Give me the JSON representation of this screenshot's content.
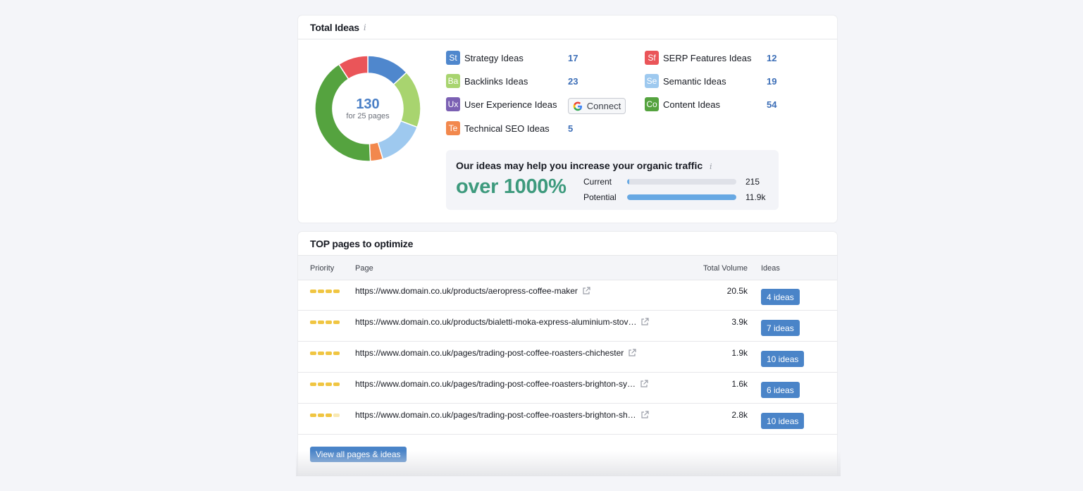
{
  "total_ideas": {
    "title": "Total Ideas",
    "info_glyph": "i",
    "donut": {
      "total": "130",
      "subtitle": "for 25 pages",
      "segments": [
        {
          "name": "Strategy Ideas",
          "value": 17,
          "color": "#4f87cd"
        },
        {
          "name": "Backlinks Ideas",
          "value": 23,
          "color": "#a8d46f"
        },
        {
          "name": "Semantic Ideas",
          "value": 19,
          "color": "#9ec9ef"
        },
        {
          "name": "Technical SEO Ideas",
          "value": 5,
          "color": "#f2884d"
        },
        {
          "name": "Content Ideas",
          "value": 54,
          "color": "#55a33f"
        },
        {
          "name": "SERP Features Ideas",
          "value": 12,
          "color": "#ea5559"
        }
      ]
    },
    "ideas": [
      {
        "badge": "St",
        "label": "Strategy Ideas",
        "count": "17",
        "color": "#4f87cd"
      },
      {
        "badge": "Ba",
        "label": "Backlinks Ideas",
        "count": "23",
        "color": "#a8d46f"
      },
      {
        "badge": "Ux",
        "label": "User Experience Ideas",
        "count": "",
        "color": "#7b60b3"
      },
      {
        "badge": "Te",
        "label": "Technical SEO Ideas",
        "count": "5",
        "color": "#f2884d"
      },
      {
        "badge": "Sf",
        "label": "SERP Features Ideas",
        "count": "12",
        "color": "#ea5559"
      },
      {
        "badge": "Se",
        "label": "Semantic Ideas",
        "count": "19",
        "color": "#9ec9ef"
      },
      {
        "badge": "Co",
        "label": "Content Ideas",
        "count": "54",
        "color": "#55a33f"
      }
    ],
    "connect_label": "Connect",
    "traffic": {
      "title": "Our ideas may help you increase your organic traffic",
      "headline": "over 1000%",
      "current_label": "Current",
      "current_value": "215",
      "current_fraction": 0.018,
      "potential_label": "Potential",
      "potential_value": "11.9k",
      "potential_fraction": 1.0
    }
  },
  "top_pages": {
    "title": "TOP pages to optimize",
    "columns": {
      "priority": "Priority",
      "page": "Page",
      "volume": "Total Volume",
      "ideas": "Ideas"
    },
    "rows": [
      {
        "priority": 4,
        "url": "https://www.domain.co.uk/products/aeropress-coffee-maker",
        "volume": "20.5k",
        "ideas": "4 ideas"
      },
      {
        "priority": 4,
        "url": "https://www.domain.co.uk/products/bialetti-moka-express-aluminium-stov…",
        "volume": "3.9k",
        "ideas": "7 ideas"
      },
      {
        "priority": 4,
        "url": "https://www.domain.co.uk/pages/trading-post-coffee-roasters-chichester",
        "volume": "1.9k",
        "ideas": "10 ideas"
      },
      {
        "priority": 4,
        "url": "https://www.domain.co.uk/pages/trading-post-coffee-roasters-brighton-sy…",
        "volume": "1.6k",
        "ideas": "6 ideas"
      },
      {
        "priority": 3,
        "url": "https://www.domain.co.uk/pages/trading-post-coffee-roasters-brighton-sh…",
        "volume": "2.8k",
        "ideas": "10 ideas"
      }
    ],
    "view_all_label": "View all pages & ideas",
    "priority_color": "#f0c541",
    "priority_empty_color": "#f8e9b3"
  }
}
